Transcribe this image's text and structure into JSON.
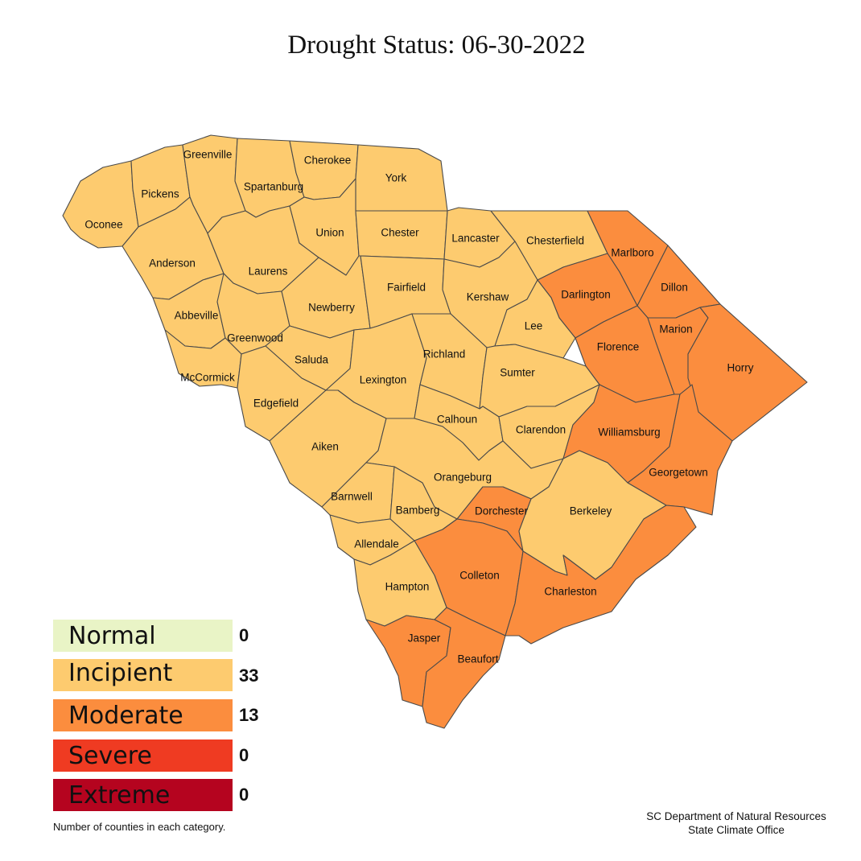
{
  "title": "Drought Status:  06-30-2022",
  "colors": {
    "Normal": "#e9f4c6",
    "Incipient": "#fdcb6f",
    "Moderate": "#fb8d3e",
    "Severe": "#ef3b22",
    "Extreme": "#b5041f"
  },
  "legend": [
    {
      "category": "Normal",
      "count": "0"
    },
    {
      "category": "Incipient",
      "count": "33"
    },
    {
      "category": "Moderate",
      "count": "13"
    },
    {
      "category": "Severe",
      "count": "0"
    },
    {
      "category": "Extreme",
      "count": "0"
    }
  ],
  "legend_note": "Number of counties in each category.",
  "credit": {
    "line1": "SC Department of Natural Resources",
    "line2": "State Climate Office"
  },
  "counties": [
    {
      "name": "Oconee",
      "status": "Incipient"
    },
    {
      "name": "Pickens",
      "status": "Incipient"
    },
    {
      "name": "Greenville",
      "status": "Incipient"
    },
    {
      "name": "Spartanburg",
      "status": "Incipient"
    },
    {
      "name": "Cherokee",
      "status": "Incipient"
    },
    {
      "name": "York",
      "status": "Incipient"
    },
    {
      "name": "Anderson",
      "status": "Incipient"
    },
    {
      "name": "Laurens",
      "status": "Incipient"
    },
    {
      "name": "Union",
      "status": "Incipient"
    },
    {
      "name": "Chester",
      "status": "Incipient"
    },
    {
      "name": "Lancaster",
      "status": "Incipient"
    },
    {
      "name": "Chesterfield",
      "status": "Incipient"
    },
    {
      "name": "Marlboro",
      "status": "Moderate"
    },
    {
      "name": "Abbeville",
      "status": "Incipient"
    },
    {
      "name": "Greenwood",
      "status": "Incipient"
    },
    {
      "name": "Newberry",
      "status": "Incipient"
    },
    {
      "name": "Fairfield",
      "status": "Incipient"
    },
    {
      "name": "Kershaw",
      "status": "Incipient"
    },
    {
      "name": "Darlington",
      "status": "Moderate"
    },
    {
      "name": "Dillon",
      "status": "Moderate"
    },
    {
      "name": "McCormick",
      "status": "Incipient"
    },
    {
      "name": "Saluda",
      "status": "Incipient"
    },
    {
      "name": "Lexington",
      "status": "Incipient"
    },
    {
      "name": "Richland",
      "status": "Incipient"
    },
    {
      "name": "Lee",
      "status": "Incipient"
    },
    {
      "name": "Florence",
      "status": "Moderate"
    },
    {
      "name": "Marion",
      "status": "Moderate"
    },
    {
      "name": "Horry",
      "status": "Moderate"
    },
    {
      "name": "Edgefield",
      "status": "Incipient"
    },
    {
      "name": "Sumter",
      "status": "Incipient"
    },
    {
      "name": "Aiken",
      "status": "Incipient"
    },
    {
      "name": "Calhoun",
      "status": "Incipient"
    },
    {
      "name": "Clarendon",
      "status": "Incipient"
    },
    {
      "name": "Williamsburg",
      "status": "Moderate"
    },
    {
      "name": "Georgetown",
      "status": "Moderate"
    },
    {
      "name": "Orangeburg",
      "status": "Incipient"
    },
    {
      "name": "Barnwell",
      "status": "Incipient"
    },
    {
      "name": "Bamberg",
      "status": "Incipient"
    },
    {
      "name": "Dorchester",
      "status": "Moderate"
    },
    {
      "name": "Berkeley",
      "status": "Incipient"
    },
    {
      "name": "Allendale",
      "status": "Incipient"
    },
    {
      "name": "Colleton",
      "status": "Moderate"
    },
    {
      "name": "Charleston",
      "status": "Moderate"
    },
    {
      "name": "Hampton",
      "status": "Incipient"
    },
    {
      "name": "Jasper",
      "status": "Moderate"
    },
    {
      "name": "Beaufort",
      "status": "Moderate"
    }
  ]
}
